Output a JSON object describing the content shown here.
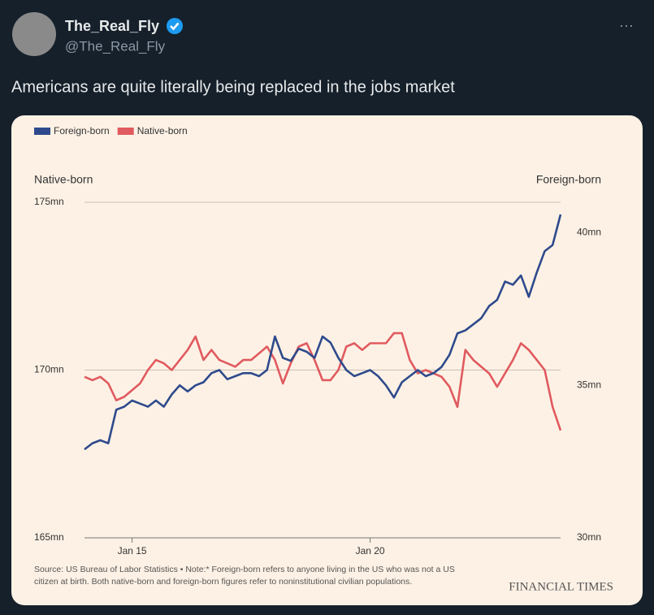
{
  "post": {
    "name": "The_Real_Fly",
    "handle": "@The_Real_Fly",
    "menu": "···",
    "text": "Americans are quite literally being replaced in the jobs market"
  },
  "chart_data": {
    "type": "line",
    "ylabel": "Native-born",
    "y2label": "Foreign-born",
    "categories": [
      null,
      null,
      null,
      null,
      null,
      null,
      "Jan 15",
      null,
      null,
      null,
      null,
      null,
      null,
      null,
      null,
      null,
      null,
      null,
      null,
      null,
      null,
      null,
      null,
      null,
      null,
      null,
      null,
      null,
      null,
      null,
      null,
      null,
      null,
      null,
      null,
      null,
      "Jan 20",
      null,
      null,
      null,
      null,
      null,
      null,
      null,
      null,
      null,
      null,
      null,
      null,
      null,
      null,
      null,
      null,
      null,
      null,
      null,
      null,
      null,
      null,
      null,
      null
    ],
    "series": [
      {
        "name": "Foreign-born",
        "color": "#2e4a8c",
        "axis": "y2",
        "values": [
          32.9,
          33.1,
          33.2,
          33.1,
          34.2,
          34.3,
          34.5,
          34.4,
          34.3,
          34.5,
          34.3,
          34.7,
          35.0,
          34.8,
          35.0,
          35.1,
          35.4,
          35.5,
          35.2,
          35.3,
          35.4,
          35.4,
          35.3,
          35.5,
          36.6,
          35.9,
          35.8,
          36.2,
          36.1,
          35.9,
          36.6,
          36.4,
          35.9,
          35.5,
          35.3,
          35.4,
          35.5,
          35.3,
          35.0,
          34.6,
          35.1,
          35.3,
          35.5,
          35.3,
          35.4,
          35.6,
          36.0,
          36.7,
          36.8,
          37.0,
          37.2,
          37.6,
          37.8,
          38.4,
          38.3,
          38.6,
          37.9,
          38.7,
          39.4,
          39.6,
          40.6
        ]
      },
      {
        "name": "Native-born",
        "color": "#e05a5f",
        "values": [
          169.8,
          169.7,
          169.8,
          169.6,
          169.1,
          169.2,
          169.4,
          169.6,
          170.0,
          170.3,
          170.2,
          170.0,
          170.3,
          170.6,
          171.0,
          170.3,
          170.6,
          170.3,
          170.2,
          170.1,
          170.3,
          170.3,
          170.5,
          170.7,
          170.3,
          169.6,
          170.2,
          170.7,
          170.8,
          170.3,
          169.7,
          169.7,
          170.0,
          170.7,
          170.8,
          170.6,
          170.8,
          170.8,
          170.8,
          171.1,
          171.1,
          170.3,
          169.9,
          170.0,
          169.9,
          169.8,
          169.5,
          168.9,
          170.6,
          170.3,
          170.1,
          169.9,
          169.5,
          169.9,
          170.3,
          170.8,
          170.6,
          170.3,
          170.0,
          168.9,
          168.2
        ]
      }
    ],
    "ylim": [
      165,
      175
    ],
    "yticks": [
      {
        "value": 165,
        "label": "165mn"
      },
      {
        "value": 170,
        "label": "170mn"
      },
      {
        "value": 175,
        "label": "175mn"
      }
    ],
    "y2lim": [
      30,
      41
    ],
    "y2ticks": [
      {
        "value": 30,
        "label": "30mn"
      },
      {
        "value": 35,
        "label": "35mn"
      },
      {
        "value": 40,
        "label": "40mn"
      }
    ],
    "grid": true,
    "source": "Source: US Bureau of Labor Statistics • Note:* Foreign-born refers to anyone living in the US who was not a US citizen at birth. Both native-born and foreign-born figures refer to noninstitutional civilian populations.",
    "brand": "FINANCIAL TIMES"
  }
}
